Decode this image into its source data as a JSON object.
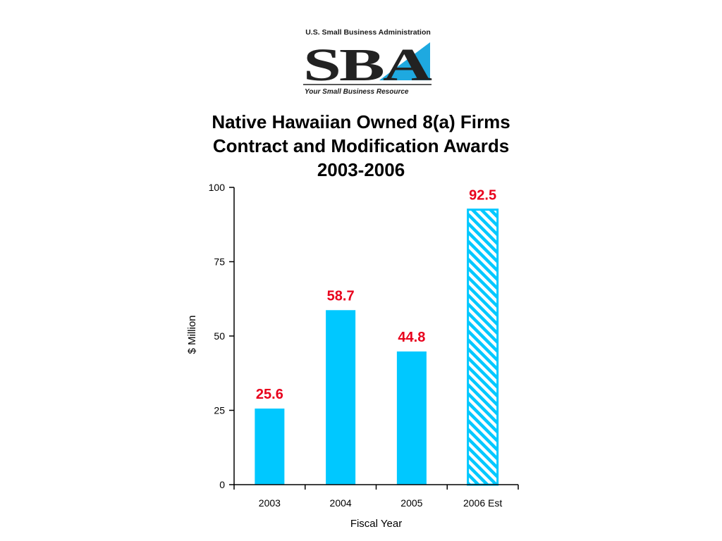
{
  "logo": {
    "org": "U.S. Small Business Administration",
    "mark": "SBA",
    "tagline": "Your Small Business Resource"
  },
  "title": {
    "line1": "Native Hawaiian Owned 8(a) Firms",
    "line2": "Contract and Modification Awards",
    "line3": "2003-2006"
  },
  "chart_data": {
    "type": "bar",
    "categories": [
      "2003",
      "2004",
      "2005",
      "2006 Est"
    ],
    "values": [
      25.6,
      58.7,
      44.8,
      92.5
    ],
    "data_labels": [
      "25.6",
      "58.7",
      "44.8",
      "92.5"
    ],
    "estimated": [
      false,
      false,
      false,
      true
    ],
    "xlabel": "Fiscal Year",
    "ylabel": "$ Million",
    "ylim": [
      0,
      100
    ],
    "yticks": [
      0,
      25,
      50,
      75,
      100
    ],
    "grid": false,
    "colors": {
      "bar": "#00c8ff",
      "hatch": "#00c8ff",
      "label": "#e8001c",
      "axis": "#000000"
    }
  }
}
